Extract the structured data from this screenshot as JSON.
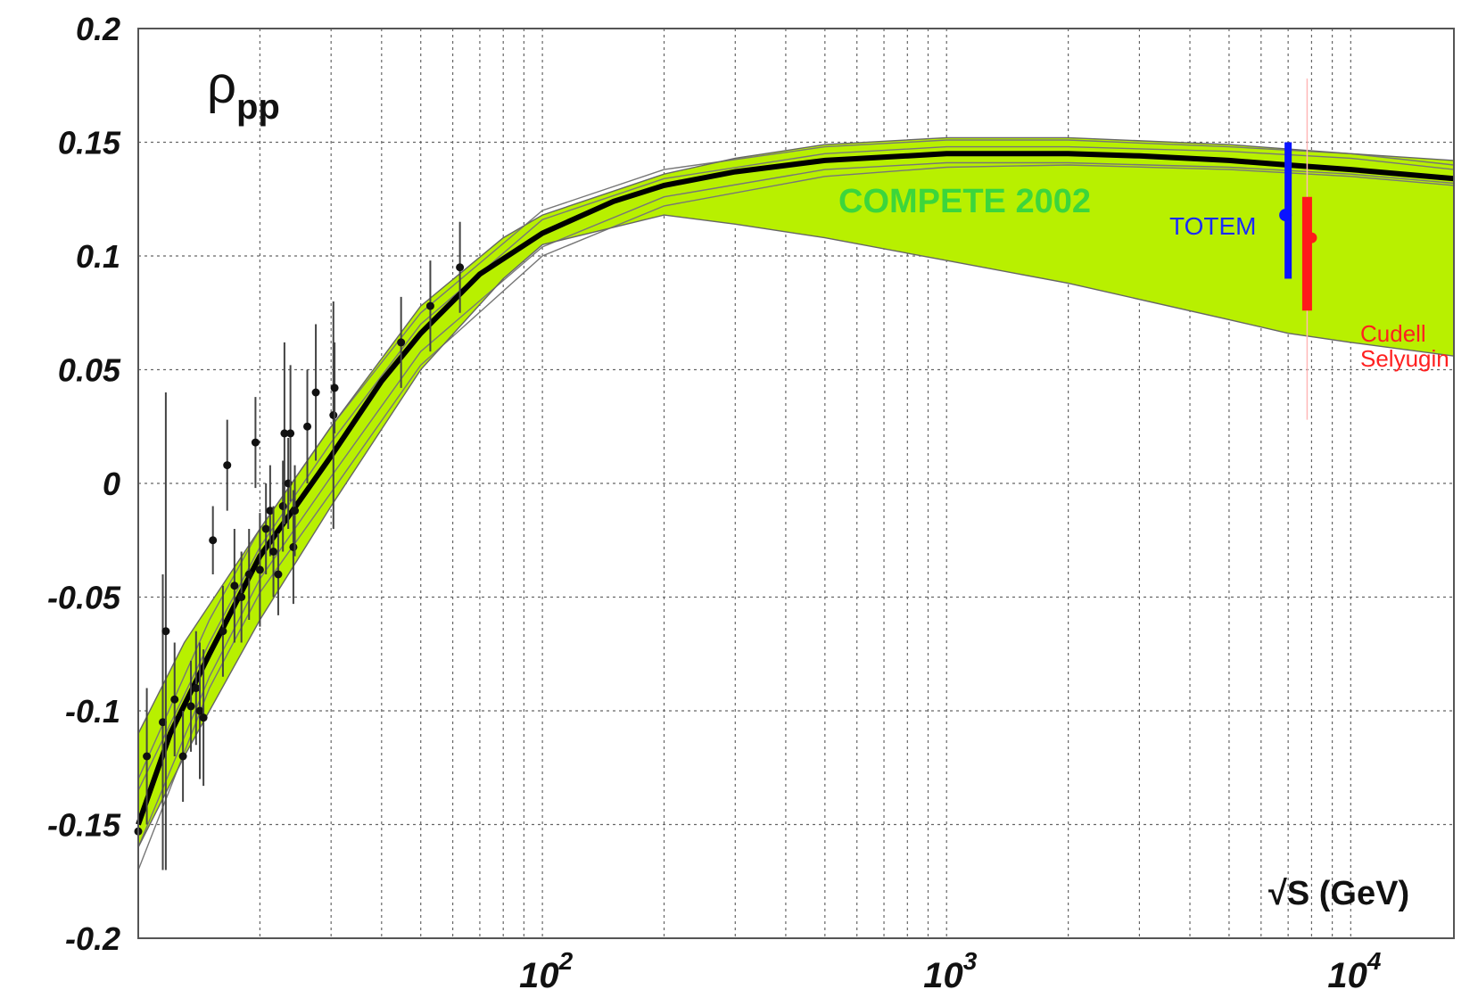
{
  "chart_data": {
    "type": "scatter",
    "title": "ρpp",
    "title_main": "ρ",
    "title_sub": "pp",
    "xlabel": "√S (GeV)",
    "ylabel": "",
    "x_scale": "log",
    "xlim": [
      10,
      18000
    ],
    "ylim": [
      -0.2,
      0.2
    ],
    "grid": true,
    "yticks": [
      "0.2",
      "0.15",
      "0.1",
      "0.05",
      "0",
      "-0.05",
      "-0.1",
      "-0.15",
      "-0.2"
    ],
    "xticks": [
      {
        "value": 100,
        "base": "10",
        "exp": "2"
      },
      {
        "value": 1000,
        "base": "10",
        "exp": "3"
      },
      {
        "value": 10000,
        "base": "10",
        "exp": "4"
      }
    ],
    "band": {
      "name": "COMPETE 2002",
      "color": "#b8f000",
      "upper": [
        [
          10,
          -0.11
        ],
        [
          13,
          -0.07
        ],
        [
          20,
          -0.02
        ],
        [
          30,
          0.025
        ],
        [
          50,
          0.078
        ],
        [
          80,
          0.108
        ],
        [
          100,
          0.118
        ],
        [
          200,
          0.136
        ],
        [
          300,
          0.143
        ],
        [
          500,
          0.149
        ],
        [
          1000,
          0.152
        ],
        [
          2000,
          0.152
        ],
        [
          5000,
          0.149
        ],
        [
          10000,
          0.145
        ],
        [
          18000,
          0.142
        ]
      ],
      "lower": [
        [
          10,
          -0.16
        ],
        [
          13,
          -0.12
        ],
        [
          20,
          -0.06
        ],
        [
          30,
          -0.01
        ],
        [
          50,
          0.05
        ],
        [
          80,
          0.09
        ],
        [
          100,
          0.105
        ],
        [
          200,
          0.118
        ],
        [
          300,
          0.114
        ],
        [
          500,
          0.108
        ],
        [
          1000,
          0.098
        ],
        [
          2000,
          0.088
        ],
        [
          5000,
          0.072
        ],
        [
          7000,
          0.066
        ],
        [
          10000,
          0.062
        ],
        [
          18000,
          0.056
        ]
      ]
    },
    "central_curve": [
      [
        10,
        -0.15
      ],
      [
        12,
        -0.11
      ],
      [
        15,
        -0.075
      ],
      [
        20,
        -0.032
      ],
      [
        25,
        -0.008
      ],
      [
        30,
        0.012
      ],
      [
        40,
        0.045
      ],
      [
        50,
        0.066
      ],
      [
        70,
        0.092
      ],
      [
        100,
        0.11
      ],
      [
        150,
        0.124
      ],
      [
        200,
        0.131
      ],
      [
        300,
        0.137
      ],
      [
        500,
        0.142
      ],
      [
        1000,
        0.145
      ],
      [
        2000,
        0.145
      ],
      [
        3000,
        0.144
      ],
      [
        5000,
        0.142
      ],
      [
        7000,
        0.14
      ],
      [
        10000,
        0.138
      ],
      [
        18000,
        0.134
      ]
    ],
    "model_curves": [
      [
        [
          10,
          -0.13
        ],
        [
          15,
          -0.06
        ],
        [
          20,
          -0.02
        ],
        [
          30,
          0.025
        ],
        [
          50,
          0.075
        ],
        [
          100,
          0.12
        ],
        [
          200,
          0.138
        ],
        [
          500,
          0.148
        ],
        [
          1000,
          0.151
        ],
        [
          2000,
          0.151
        ],
        [
          5000,
          0.148
        ],
        [
          10000,
          0.145
        ],
        [
          18000,
          0.14
        ]
      ],
      [
        [
          10,
          -0.16
        ],
        [
          15,
          -0.085
        ],
        [
          20,
          -0.042
        ],
        [
          30,
          0.003
        ],
        [
          50,
          0.058
        ],
        [
          100,
          0.104
        ],
        [
          200,
          0.126
        ],
        [
          500,
          0.138
        ],
        [
          1000,
          0.141
        ],
        [
          2000,
          0.141
        ],
        [
          5000,
          0.139
        ],
        [
          10000,
          0.136
        ],
        [
          18000,
          0.132
        ]
      ],
      [
        [
          10,
          -0.135
        ],
        [
          15,
          -0.07
        ],
        [
          20,
          -0.028
        ],
        [
          30,
          0.018
        ],
        [
          50,
          0.07
        ],
        [
          100,
          0.116
        ],
        [
          200,
          0.134
        ],
        [
          500,
          0.145
        ],
        [
          1000,
          0.148
        ],
        [
          2000,
          0.148
        ],
        [
          5000,
          0.146
        ],
        [
          10000,
          0.143
        ],
        [
          18000,
          0.138
        ]
      ],
      [
        [
          10,
          -0.17
        ],
        [
          15,
          -0.09
        ],
        [
          20,
          -0.048
        ],
        [
          30,
          -0.004
        ],
        [
          50,
          0.052
        ],
        [
          100,
          0.1
        ],
        [
          200,
          0.122
        ],
        [
          500,
          0.135
        ],
        [
          1000,
          0.139
        ],
        [
          2000,
          0.14
        ],
        [
          5000,
          0.138
        ],
        [
          10000,
          0.135
        ],
        [
          18000,
          0.131
        ]
      ]
    ],
    "data_points": [
      {
        "x": 10.0,
        "y": -0.153,
        "err": 0.035
      },
      {
        "x": 10.5,
        "y": -0.12,
        "err": 0.03
      },
      {
        "x": 11.5,
        "y": -0.105,
        "err": 0.065
      },
      {
        "x": 11.7,
        "y": -0.065,
        "err": 0.105
      },
      {
        "x": 12.3,
        "y": -0.095,
        "err": 0.025
      },
      {
        "x": 12.9,
        "y": -0.12,
        "err": 0.02
      },
      {
        "x": 13.5,
        "y": -0.098,
        "err": 0.02
      },
      {
        "x": 13.9,
        "y": -0.09,
        "err": 0.025
      },
      {
        "x": 14.2,
        "y": -0.1,
        "err": 0.03
      },
      {
        "x": 14.5,
        "y": -0.103,
        "err": 0.03
      },
      {
        "x": 15.3,
        "y": -0.025,
        "err": 0.015
      },
      {
        "x": 16.2,
        "y": -0.065,
        "err": 0.02
      },
      {
        "x": 16.6,
        "y": 0.008,
        "err": 0.02
      },
      {
        "x": 17.3,
        "y": -0.045,
        "err": 0.025
      },
      {
        "x": 18.0,
        "y": -0.05,
        "err": 0.02
      },
      {
        "x": 18.8,
        "y": -0.04,
        "err": 0.02
      },
      {
        "x": 19.5,
        "y": 0.018,
        "err": 0.02
      },
      {
        "x": 20.0,
        "y": -0.038,
        "err": 0.025
      },
      {
        "x": 20.7,
        "y": -0.02,
        "err": 0.02
      },
      {
        "x": 21.2,
        "y": -0.012,
        "err": 0.02
      },
      {
        "x": 21.6,
        "y": -0.03,
        "err": 0.02
      },
      {
        "x": 22.2,
        "y": -0.04,
        "err": 0.018
      },
      {
        "x": 22.8,
        "y": -0.01,
        "err": 0.02
      },
      {
        "x": 23.0,
        "y": 0.022,
        "err": 0.04
      },
      {
        "x": 23.5,
        "y": 0.0,
        "err": 0.02
      },
      {
        "x": 23.8,
        "y": 0.022,
        "err": 0.03
      },
      {
        "x": 24.2,
        "y": -0.028,
        "err": 0.025
      },
      {
        "x": 24.4,
        "y": -0.012,
        "err": 0.02
      },
      {
        "x": 26.2,
        "y": 0.025,
        "err": 0.025
      },
      {
        "x": 27.5,
        "y": 0.04,
        "err": 0.03
      },
      {
        "x": 30.4,
        "y": 0.03,
        "err": 0.05
      },
      {
        "x": 30.6,
        "y": 0.042,
        "err": 0.02
      },
      {
        "x": 44.7,
        "y": 0.062,
        "err": 0.02
      },
      {
        "x": 52.8,
        "y": 0.078,
        "err": 0.02
      },
      {
        "x": 62.5,
        "y": 0.095,
        "err": 0.02
      }
    ],
    "totem": {
      "name": "TOTEM",
      "x": 7000,
      "y": 0.118,
      "err_low": 0.028,
      "err_high": 0.032,
      "color": "#0a14ff"
    },
    "cudell": {
      "name": "Cudell Selyugin",
      "line1": "Cudell",
      "line2": "Selyugin",
      "x": 7800,
      "y": 0.108,
      "err_low": 0.032,
      "err_high": 0.018,
      "outer_low": 0.08,
      "outer_high": 0.07,
      "color": "#ff1a1a"
    }
  }
}
